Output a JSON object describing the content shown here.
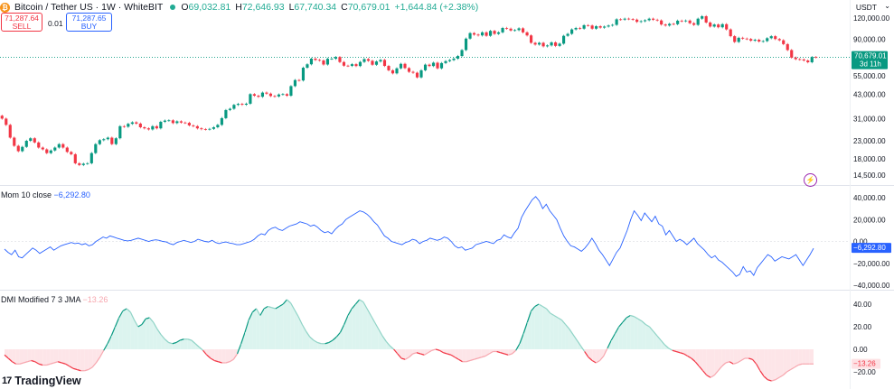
{
  "header": {
    "symbol": "Bitcoin / Tether US · 1W · WhiteBIT",
    "open_label": "O",
    "open": "69,032.81",
    "high_label": "H",
    "high": "72,646.93",
    "low_label": "L",
    "low": "67,740.34",
    "close_label": "C",
    "close": "70,679.01",
    "change": "+1,644.84 (+2.38%)",
    "coin_glyph": "₿"
  },
  "trade": {
    "sell_price": "71,287.64",
    "sell_label": "SELL",
    "spread": "0.01",
    "buy_price": "71,287.65",
    "buy_label": "BUY"
  },
  "currency": {
    "label": "USDT",
    "chevron": "⌄"
  },
  "branding": {
    "logo_mark": "17",
    "name": "TradingView"
  },
  "colors": {
    "up": "#089981",
    "down": "#f23645",
    "momentum": "#2962ff",
    "dmi_up": "#089981",
    "dmi_down": "#f23645",
    "price_tag": "#089981"
  },
  "chart_data": [
    {
      "type": "candlestick",
      "name": "Bitcoin / Tether US",
      "interval": "1W",
      "y_scale": "log",
      "y_ticks": [
        "120,000.00",
        "90,000.00",
        "70,679.01",
        "55,000.00",
        "43,000.00",
        "31,000.00",
        "23,000.00",
        "18,000.00",
        "14,500.00"
      ],
      "y_tick_values": [
        120000,
        90000,
        55000,
        43000,
        31000,
        23000,
        18000,
        14500
      ],
      "last_price": {
        "value": 70679.01,
        "label": "70,679.01",
        "countdown": "3d 11h"
      },
      "closes": [
        31000,
        28500,
        24000,
        21500,
        20000,
        21200,
        23000,
        23800,
        22500,
        21000,
        20500,
        19500,
        20200,
        21000,
        22000,
        21000,
        19800,
        19200,
        17000,
        16600,
        16900,
        17000,
        19500,
        22000,
        23200,
        23500,
        24000,
        22000,
        23800,
        28000,
        27800,
        28900,
        29500,
        29000,
        27600,
        27200,
        26800,
        28000,
        27200,
        29700,
        30200,
        30300,
        29200,
        29900,
        29400,
        29300,
        28300,
        28000,
        27200,
        26900,
        26800,
        27000,
        27600,
        28500,
        31200,
        34800,
        35400,
        37300,
        37800,
        37400,
        37900,
        43100,
        42200,
        41600,
        44000,
        43400,
        42000,
        41800,
        42900,
        43100,
        42200,
        48000,
        52100,
        51800,
        61500,
        64400,
        69500,
        68300,
        67800,
        64200,
        69400,
        69400,
        71000,
        66400,
        63200,
        63000,
        64500,
        62900,
        66500,
        69100,
        67500,
        64000,
        66900,
        68300,
        63000,
        59400,
        57000,
        61000,
        64800,
        61200,
        58200,
        57500,
        54000,
        59400,
        64100,
        62900,
        65800,
        61000,
        65500,
        67200,
        68200,
        69500,
        72000,
        78000,
        91000,
        98000,
        96000,
        95000,
        99000,
        94500,
        101000,
        97000,
        99000,
        105000,
        104000,
        101500,
        102000,
        104500,
        99000,
        95000,
        86000,
        84000,
        86000,
        82000,
        83000,
        86500,
        82500,
        85000,
        94500,
        97000,
        103000,
        105000,
        104000,
        109000,
        108500,
        104000,
        107500,
        105500,
        107000,
        108500,
        109500,
        118000,
        117500,
        119000,
        118300,
        117500,
        114000,
        115000,
        116500,
        119000,
        117300,
        116200,
        110000,
        108500,
        111000,
        110500,
        115800,
        115000,
        116000,
        112000,
        109500,
        119000,
        123000,
        113000,
        107000,
        110000,
        106000,
        110500,
        103000,
        94000,
        87000,
        92000,
        91000,
        90500,
        88500,
        89600,
        87500,
        88000,
        91500,
        94000,
        90500,
        89000,
        84500,
        78000,
        70500,
        69000,
        68700,
        67800,
        66200,
        71000,
        70679
      ]
    },
    {
      "type": "line",
      "name": "Mom 10 close",
      "last_value": "−6,292.80",
      "y_ticks": [
        "40,000.00",
        "20,000.00",
        "0.00",
        "−20,000.00",
        "−40,000.00"
      ],
      "y_tick_values": [
        40000,
        20000,
        0,
        -20000,
        -40000
      ],
      "values": [
        -7000,
        -10000,
        -12000,
        -8000,
        -14000,
        -15000,
        -12000,
        -9000,
        -6000,
        -8000,
        -11000,
        -9000,
        -7000,
        -5000,
        -8000,
        -6000,
        -4000,
        -3000,
        -2000,
        -1000,
        -2000,
        -1500,
        -3000,
        -2000,
        -4000,
        -3000,
        0,
        2000,
        4000,
        3000,
        5000,
        4000,
        3000,
        2000,
        1000,
        500,
        1000,
        2000,
        3000,
        2000,
        1000,
        0,
        1000,
        1500,
        1000,
        0,
        -500,
        -2000,
        -3000,
        -1000,
        0,
        1000,
        0,
        -1000,
        0,
        2000,
        1000,
        0,
        -500,
        1000,
        -1000,
        -2000,
        -1000,
        -500,
        -1500,
        -2000,
        -3000,
        -3000,
        -2000,
        -1000,
        0,
        2000,
        5000,
        7000,
        6000,
        10000,
        12000,
        13000,
        11000,
        10000,
        12000,
        14000,
        15000,
        16000,
        18000,
        17000,
        16000,
        14000,
        15000,
        13000,
        10000,
        8000,
        9000,
        7000,
        11000,
        14000,
        16000,
        20000,
        22000,
        24000,
        26000,
        28000,
        27000,
        25000,
        22000,
        18000,
        15000,
        10000,
        5000,
        3000,
        0,
        -1000,
        -2000,
        -3000,
        -1000,
        0,
        2000,
        1000,
        -2000,
        0,
        1000,
        3000,
        2000,
        1000,
        2000,
        4000,
        3000,
        0,
        -4000,
        -6000,
        -5000,
        -8000,
        -7000,
        -6000,
        -3000,
        -2000,
        -1000,
        0,
        -1000,
        -2000,
        1000,
        2000,
        6000,
        4000,
        3000,
        8000,
        12000,
        22000,
        28000,
        33000,
        38000,
        41000,
        37000,
        30000,
        34000,
        28000,
        24000,
        20000,
        12000,
        5000,
        0,
        -4000,
        -5000,
        -7000,
        -9000,
        -6000,
        -2000,
        3000,
        -2000,
        -8000,
        -12000,
        -17000,
        -22000,
        -16000,
        -10000,
        -6000,
        2000,
        10000,
        20000,
        28000,
        24000,
        19000,
        26000,
        22000,
        18000,
        23000,
        16000,
        14000,
        6000,
        10000,
        5000,
        0,
        2000,
        0,
        -3000,
        0,
        3000,
        -2000,
        -5000,
        -8000,
        -12000,
        -15000,
        -13000,
        -17000,
        -19000,
        -22000,
        -25000,
        -28000,
        -32000,
        -30000,
        -23000,
        -28000,
        -27000,
        -31000,
        -24000,
        -20000,
        -16000,
        -12000,
        -14000,
        -18000,
        -16000,
        -14000,
        -15000,
        -16000,
        -14000,
        -12000,
        -17000,
        -22000,
        -17000,
        -12000,
        -6293
      ]
    },
    {
      "type": "area",
      "name": "DMI Modified 7 3 JMA",
      "last_value": "−13.26",
      "y_ticks": [
        "40.00",
        "20.00",
        "0.00",
        "−20.00"
      ],
      "y_tick_values": [
        40,
        20,
        0,
        -20
      ],
      "values": [
        -5,
        -8,
        -11,
        -13,
        -13,
        -12,
        -11,
        -10,
        -11,
        -13,
        -14,
        -14,
        -13,
        -12,
        -11,
        -12,
        -13,
        -15,
        -17,
        -18,
        -19,
        -19,
        -18,
        -16,
        -12,
        -7,
        -1,
        5,
        12,
        20,
        28,
        34,
        36,
        33,
        26,
        20,
        22,
        27,
        28,
        24,
        18,
        13,
        9,
        6,
        5,
        6,
        8,
        9,
        9,
        8,
        5,
        2,
        -1,
        -5,
        -8,
        -10,
        -11,
        -12,
        -12,
        -11,
        -9,
        -4,
        5,
        15,
        26,
        33,
        36,
        30,
        36,
        38,
        37,
        36,
        38,
        40,
        44,
        41,
        35,
        29,
        22,
        16,
        11,
        8,
        6,
        5,
        5,
        6,
        8,
        11,
        15,
        22,
        30,
        36,
        40,
        44,
        42,
        36,
        30,
        24,
        18,
        12,
        7,
        3,
        0,
        -4,
        -8,
        -9,
        -7,
        -4,
        -3,
        -4,
        -5,
        -3,
        -1,
        0,
        -1,
        -3,
        -4,
        -5,
        -7,
        -9,
        -11,
        -11,
        -10,
        -9,
        -8,
        -7,
        -6,
        -4,
        -2,
        -2,
        -3,
        -4,
        -5,
        -4,
        -1,
        5,
        14,
        24,
        34,
        38,
        40,
        38,
        36,
        32,
        30,
        28,
        26,
        22,
        18,
        13,
        8,
        3,
        -2,
        -7,
        -10,
        -12,
        -10,
        -6,
        1,
        8,
        14,
        20,
        24,
        28,
        30,
        29,
        27,
        25,
        22,
        20,
        16,
        12,
        8,
        4,
        1,
        -1,
        -2,
        -3,
        -4,
        -6,
        -8,
        -11,
        -15,
        -19,
        -23,
        -25,
        -23,
        -19,
        -15,
        -12,
        -11,
        -13,
        -12,
        -10,
        -8,
        -8,
        -9,
        -13,
        -19,
        -24,
        -27,
        -28,
        -27,
        -25,
        -23,
        -20,
        -18,
        -16,
        -14,
        -13,
        -13,
        -13,
        -13
      ]
    }
  ]
}
